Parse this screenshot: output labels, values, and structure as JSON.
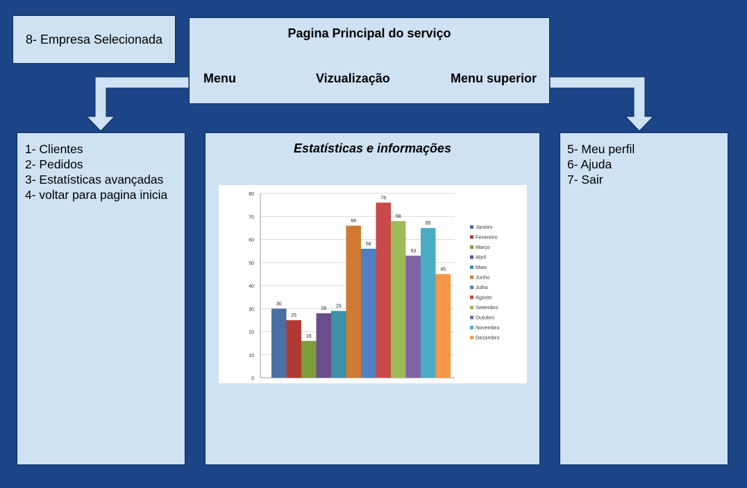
{
  "empresa": {
    "label": "8- Empresa Selecionada"
  },
  "principal": {
    "title": "Pagina Principal do serviço",
    "menu": "Menu",
    "vizualizacao": "Vizualização",
    "menu_superior": "Menu superior"
  },
  "left_menu": {
    "items": [
      "1- Clientes",
      "2- Pedidos",
      "3- Estatísticas avançadas",
      "4- voltar para pagina inicia"
    ]
  },
  "center": {
    "title": "Estatísticas e informações"
  },
  "right_menu": {
    "items": [
      "5- Meu perfil",
      "6- Ajuda",
      "7- Sair"
    ]
  },
  "colors": {
    "background": "#1c4587",
    "panel": "#cfe2f3",
    "arrow": "#cfe2f3"
  },
  "chart_data": {
    "type": "bar",
    "categories": [
      "Janeiro",
      "Fevereiro",
      "Março",
      "Abril",
      "Maio",
      "Junho",
      "Julho",
      "Agosto",
      "Setembro",
      "Outubro",
      "Novembro",
      "Dezembro"
    ],
    "values": [
      30,
      25,
      16,
      28,
      29,
      66,
      56,
      76,
      68,
      53,
      65,
      45
    ],
    "colors": [
      "#4a6fa5",
      "#b03a32",
      "#7f9c3b",
      "#6a4d8c",
      "#3a91a8",
      "#d07a32",
      "#4f80c4",
      "#c94a49",
      "#9cbb59",
      "#8064a2",
      "#4bacc6",
      "#f79646"
    ],
    "ylim": [
      0,
      80
    ],
    "yticks": [
      0,
      10,
      20,
      30,
      40,
      50,
      60,
      70,
      80
    ],
    "legend": "right",
    "grid": true
  }
}
